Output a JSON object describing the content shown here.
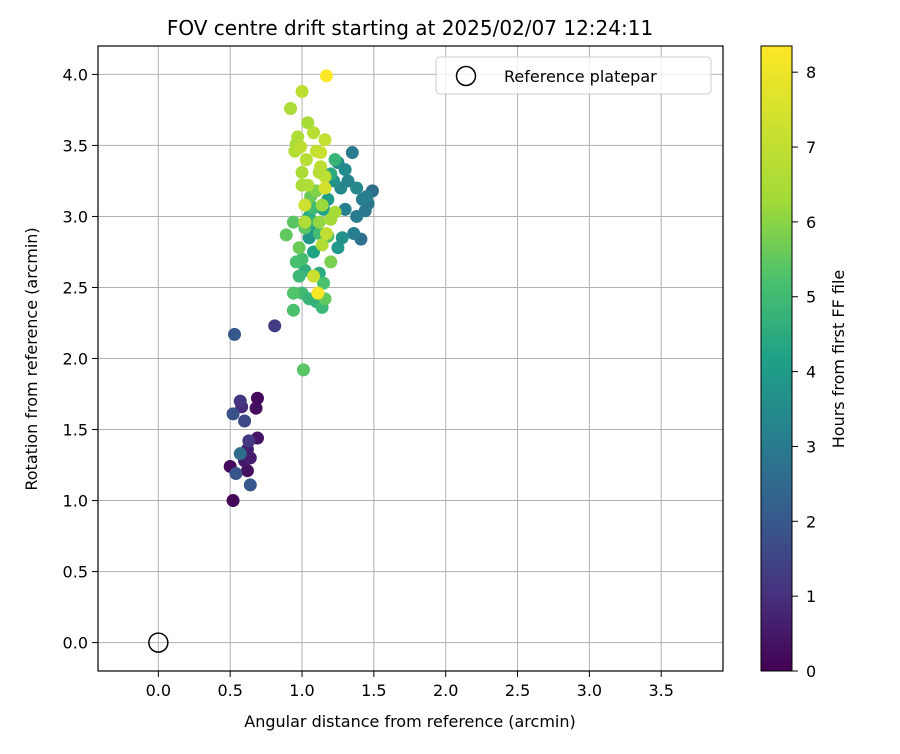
{
  "chart_data": {
    "type": "scatter",
    "title": "FOV centre drift starting at 2025/02/07 12:24:11",
    "xlabel": "Angular distance from reference (arcmin)",
    "ylabel": "Rotation from reference (arcmin)",
    "xlim": [
      -0.42,
      3.93
    ],
    "ylim": [
      -0.2,
      4.2
    ],
    "xticks": [
      0.0,
      0.5,
      1.0,
      1.5,
      2.0,
      2.5,
      3.0,
      3.5
    ],
    "yticks": [
      0.0,
      0.5,
      1.0,
      1.5,
      2.0,
      2.5,
      3.0,
      3.5,
      4.0
    ],
    "xtick_labels": [
      "0.0",
      "0.5",
      "1.0",
      "1.5",
      "2.0",
      "2.5",
      "3.0",
      "3.5"
    ],
    "ytick_labels": [
      "0.0",
      "0.5",
      "1.0",
      "1.5",
      "2.0",
      "2.5",
      "3.0",
      "3.5",
      "4.0"
    ],
    "grid": true,
    "colormap": "viridis",
    "colorbar": {
      "label": "Hours from first FF file",
      "range": [
        0,
        8.35
      ],
      "ticks": [
        0,
        1,
        2,
        3,
        4,
        5,
        6,
        7,
        8
      ],
      "tick_labels": [
        "0",
        "1",
        "2",
        "3",
        "4",
        "5",
        "6",
        "7",
        "8"
      ]
    },
    "legend": {
      "position": "top-right",
      "entries": [
        "Reference platepar"
      ]
    },
    "reference_point": {
      "x": 0.0,
      "y": 0.0
    },
    "points": [
      {
        "x": 0.52,
        "y": 1.0,
        "h": 0.1
      },
      {
        "x": 0.5,
        "y": 1.24,
        "h": 0.2
      },
      {
        "x": 0.62,
        "y": 1.21,
        "h": 0.3
      },
      {
        "x": 0.6,
        "y": 1.28,
        "h": 0.5
      },
      {
        "x": 0.64,
        "y": 1.3,
        "h": 0.6
      },
      {
        "x": 0.62,
        "y": 1.36,
        "h": 0.7
      },
      {
        "x": 0.69,
        "y": 1.44,
        "h": 0.4
      },
      {
        "x": 0.68,
        "y": 1.65,
        "h": 0.3
      },
      {
        "x": 0.69,
        "y": 1.72,
        "h": 0.2
      },
      {
        "x": 0.58,
        "y": 1.66,
        "h": 0.9
      },
      {
        "x": 0.57,
        "y": 1.7,
        "h": 1.1
      },
      {
        "x": 0.63,
        "y": 1.42,
        "h": 1.2
      },
      {
        "x": 0.6,
        "y": 1.56,
        "h": 1.6
      },
      {
        "x": 0.52,
        "y": 1.61,
        "h": 1.8
      },
      {
        "x": 0.54,
        "y": 1.19,
        "h": 1.9
      },
      {
        "x": 0.64,
        "y": 1.11,
        "h": 2.0
      },
      {
        "x": 0.57,
        "y": 1.33,
        "h": 2.6
      },
      {
        "x": 0.81,
        "y": 2.23,
        "h": 1.3
      },
      {
        "x": 0.53,
        "y": 2.17,
        "h": 2.0
      },
      {
        "x": 1.35,
        "y": 3.45,
        "h": 3.0
      },
      {
        "x": 1.49,
        "y": 3.18,
        "h": 2.6
      },
      {
        "x": 1.46,
        "y": 3.09,
        "h": 2.9
      },
      {
        "x": 1.44,
        "y": 3.04,
        "h": 2.9
      },
      {
        "x": 1.41,
        "y": 2.84,
        "h": 2.7
      },
      {
        "x": 1.38,
        "y": 3.0,
        "h": 3.0
      },
      {
        "x": 1.36,
        "y": 2.88,
        "h": 3.1
      },
      {
        "x": 1.3,
        "y": 3.05,
        "h": 3.2
      },
      {
        "x": 1.27,
        "y": 3.2,
        "h": 3.4
      },
      {
        "x": 1.25,
        "y": 3.38,
        "h": 3.4
      },
      {
        "x": 1.32,
        "y": 3.25,
        "h": 3.3
      },
      {
        "x": 1.3,
        "y": 3.33,
        "h": 3.5
      },
      {
        "x": 1.38,
        "y": 3.2,
        "h": 3.4
      },
      {
        "x": 1.42,
        "y": 3.12,
        "h": 3.0
      },
      {
        "x": 1.45,
        "y": 3.14,
        "h": 3.1
      },
      {
        "x": 1.22,
        "y": 3.25,
        "h": 3.8
      },
      {
        "x": 1.18,
        "y": 3.12,
        "h": 4.0
      },
      {
        "x": 1.15,
        "y": 3.05,
        "h": 4.1
      },
      {
        "x": 1.1,
        "y": 2.9,
        "h": 4.0
      },
      {
        "x": 1.05,
        "y": 2.85,
        "h": 3.8
      },
      {
        "x": 1.08,
        "y": 2.75,
        "h": 4.2
      },
      {
        "x": 1.25,
        "y": 2.78,
        "h": 3.9
      },
      {
        "x": 1.28,
        "y": 2.85,
        "h": 3.7
      },
      {
        "x": 1.2,
        "y": 3.3,
        "h": 4.5
      },
      {
        "x": 1.23,
        "y": 3.4,
        "h": 4.8
      },
      {
        "x": 1.05,
        "y": 3.0,
        "h": 4.5
      },
      {
        "x": 1.12,
        "y": 2.6,
        "h": 4.5
      },
      {
        "x": 1.02,
        "y": 2.62,
        "h": 4.6
      },
      {
        "x": 0.98,
        "y": 2.58,
        "h": 4.9
      },
      {
        "x": 1.0,
        "y": 2.7,
        "h": 5.1
      },
      {
        "x": 0.96,
        "y": 2.68,
        "h": 5.2
      },
      {
        "x": 1.0,
        "y": 2.46,
        "h": 5.0
      },
      {
        "x": 1.05,
        "y": 2.42,
        "h": 4.8
      },
      {
        "x": 1.1,
        "y": 2.4,
        "h": 4.7
      },
      {
        "x": 1.14,
        "y": 2.36,
        "h": 4.9
      },
      {
        "x": 1.16,
        "y": 2.42,
        "h": 5.5
      },
      {
        "x": 1.15,
        "y": 2.53,
        "h": 5.2
      },
      {
        "x": 1.2,
        "y": 2.68,
        "h": 5.8
      },
      {
        "x": 0.94,
        "y": 2.46,
        "h": 5.3
      },
      {
        "x": 0.94,
        "y": 2.34,
        "h": 5.2
      },
      {
        "x": 0.98,
        "y": 2.78,
        "h": 5.6
      },
      {
        "x": 0.89,
        "y": 2.87,
        "h": 5.5
      },
      {
        "x": 0.94,
        "y": 2.96,
        "h": 5.4
      },
      {
        "x": 1.02,
        "y": 2.92,
        "h": 5.4
      },
      {
        "x": 1.05,
        "y": 2.96,
        "h": 4.8
      },
      {
        "x": 1.08,
        "y": 3.06,
        "h": 5.0
      },
      {
        "x": 1.12,
        "y": 2.88,
        "h": 5.1
      },
      {
        "x": 1.18,
        "y": 2.86,
        "h": 5.3
      },
      {
        "x": 1.06,
        "y": 3.14,
        "h": 5.6
      },
      {
        "x": 1.1,
        "y": 3.18,
        "h": 5.9
      },
      {
        "x": 1.14,
        "y": 3.08,
        "h": 6.2
      },
      {
        "x": 1.12,
        "y": 2.96,
        "h": 6.1
      },
      {
        "x": 1.2,
        "y": 2.98,
        "h": 6.3
      },
      {
        "x": 1.23,
        "y": 3.03,
        "h": 6.4
      },
      {
        "x": 1.0,
        "y": 3.22,
        "h": 6.5
      },
      {
        "x": 1.04,
        "y": 3.66,
        "h": 6.4
      },
      {
        "x": 0.96,
        "y": 3.51,
        "h": 6.4
      },
      {
        "x": 0.95,
        "y": 3.46,
        "h": 6.7
      },
      {
        "x": 0.99,
        "y": 3.49,
        "h": 6.9
      },
      {
        "x": 0.97,
        "y": 3.56,
        "h": 6.6
      },
      {
        "x": 1.03,
        "y": 3.4,
        "h": 6.8
      },
      {
        "x": 1.0,
        "y": 3.31,
        "h": 6.5
      },
      {
        "x": 1.04,
        "y": 3.22,
        "h": 6.6
      },
      {
        "x": 1.08,
        "y": 3.59,
        "h": 6.8
      },
      {
        "x": 1.1,
        "y": 3.46,
        "h": 7.0
      },
      {
        "x": 1.13,
        "y": 3.45,
        "h": 7.2
      },
      {
        "x": 1.16,
        "y": 3.54,
        "h": 7.1
      },
      {
        "x": 1.13,
        "y": 3.35,
        "h": 6.9
      },
      {
        "x": 1.16,
        "y": 3.28,
        "h": 7.0
      },
      {
        "x": 1.12,
        "y": 3.31,
        "h": 6.8
      },
      {
        "x": 1.02,
        "y": 3.08,
        "h": 7.3
      },
      {
        "x": 1.08,
        "y": 2.58,
        "h": 7.2
      },
      {
        "x": 1.14,
        "y": 2.8,
        "h": 6.7
      },
      {
        "x": 1.17,
        "y": 2.88,
        "h": 7.0
      },
      {
        "x": 1.16,
        "y": 3.2,
        "h": 7.4
      },
      {
        "x": 1.02,
        "y": 2.96,
        "h": 6.6
      },
      {
        "x": 0.92,
        "y": 3.76,
        "h": 6.5
      },
      {
        "x": 1.0,
        "y": 3.88,
        "h": 6.9
      },
      {
        "x": 1.01,
        "y": 1.92,
        "h": 5.4
      },
      {
        "x": 1.17,
        "y": 3.99,
        "h": 8.3
      },
      {
        "x": 1.11,
        "y": 2.46,
        "h": 8.2
      }
    ]
  }
}
